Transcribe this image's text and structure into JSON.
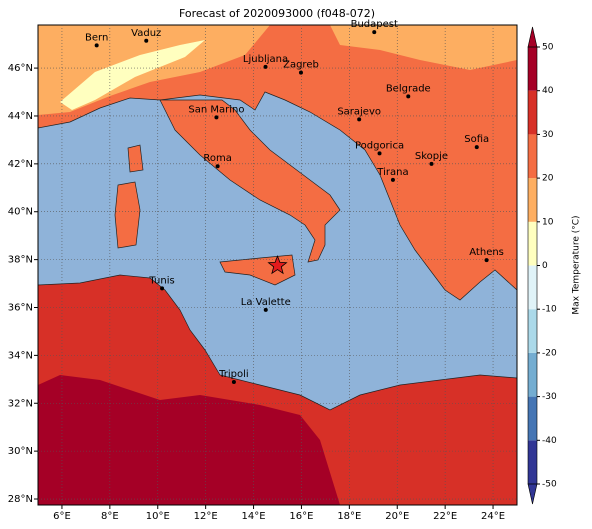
{
  "chart_data": {
    "type": "map",
    "title": "Forecast of 2020093000 (f048-072)",
    "xlim": [
      5,
      25
    ],
    "ylim": [
      27.75,
      47.8
    ],
    "grid": true,
    "xticks": [
      {
        "value": 6,
        "label": "6°E"
      },
      {
        "value": 8,
        "label": "8°E"
      },
      {
        "value": 10,
        "label": "10°E"
      },
      {
        "value": 12,
        "label": "12°E"
      },
      {
        "value": 14,
        "label": "14°E"
      },
      {
        "value": 16,
        "label": "16°E"
      },
      {
        "value": 18,
        "label": "18°E"
      },
      {
        "value": 20,
        "label": "20°E"
      },
      {
        "value": 22,
        "label": "22°E"
      },
      {
        "value": 24,
        "label": "24°E"
      }
    ],
    "yticks": [
      {
        "value": 28,
        "label": "28°N"
      },
      {
        "value": 30,
        "label": "30°N"
      },
      {
        "value": 32,
        "label": "32°N"
      },
      {
        "value": 34,
        "label": "34°N"
      },
      {
        "value": 36,
        "label": "36°N"
      },
      {
        "value": 38,
        "label": "38°N"
      },
      {
        "value": 40,
        "label": "40°N"
      },
      {
        "value": 42,
        "label": "42°N"
      },
      {
        "value": 44,
        "label": "44°N"
      },
      {
        "value": 46,
        "label": "46°N"
      }
    ],
    "cities": [
      {
        "name": "Bern",
        "lon": 7.45,
        "lat": 46.95
      },
      {
        "name": "Vaduz",
        "lon": 9.52,
        "lat": 47.14
      },
      {
        "name": "Budapest",
        "lon": 19.04,
        "lat": 47.5
      },
      {
        "name": "Ljubljana",
        "lon": 14.5,
        "lat": 46.05
      },
      {
        "name": "Zagreb",
        "lon": 15.98,
        "lat": 45.81
      },
      {
        "name": "Belgrade",
        "lon": 20.46,
        "lat": 44.82
      },
      {
        "name": "San Marino",
        "lon": 12.45,
        "lat": 43.94
      },
      {
        "name": "Sarajevo",
        "lon": 18.41,
        "lat": 43.86
      },
      {
        "name": "Sofia",
        "lon": 23.32,
        "lat": 42.7
      },
      {
        "name": "Podgorica",
        "lon": 19.26,
        "lat": 42.44
      },
      {
        "name": "Skopje",
        "lon": 21.43,
        "lat": 42.0
      },
      {
        "name": "Roma",
        "lon": 12.5,
        "lat": 41.9
      },
      {
        "name": "Tirana",
        "lon": 19.82,
        "lat": 41.33
      },
      {
        "name": "Athens",
        "lon": 23.73,
        "lat": 37.98
      },
      {
        "name": "Tunis",
        "lon": 10.18,
        "lat": 36.8
      },
      {
        "name": "La Valette",
        "lon": 14.51,
        "lat": 35.9
      },
      {
        "name": "Tripoli",
        "lon": 13.18,
        "lat": 32.89
      }
    ],
    "marker": {
      "lon": 15.0,
      "lat": 37.75,
      "color": "#e31a1c"
    },
    "colorbar": {
      "label": "Max Temperature (°C)",
      "ticks": [
        -50,
        -40,
        -30,
        -20,
        -10,
        0,
        10,
        20,
        30,
        40,
        50
      ],
      "colors": [
        "#313695",
        "#4575b4",
        "#74add1",
        "#abd9e9",
        "#e0f3f8",
        "#ffffbf",
        "#fdae61",
        "#f46d43",
        "#d73027",
        "#a50026"
      ]
    }
  }
}
